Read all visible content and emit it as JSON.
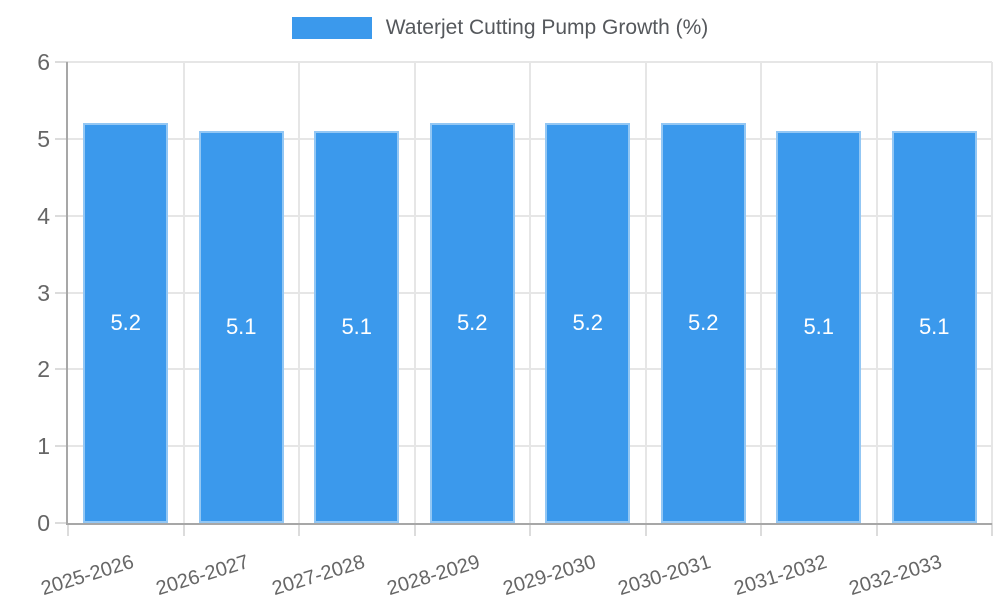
{
  "chart_data": {
    "type": "bar",
    "title": "Waterjet Cutting Pump Growth (%)",
    "categories": [
      "2025-2026",
      "2026-2027",
      "2027-2028",
      "2028-2029",
      "2029-2030",
      "2030-2031",
      "2031-2032",
      "2032-2033"
    ],
    "values": [
      5.2,
      5.1,
      5.1,
      5.2,
      5.2,
      5.2,
      5.1,
      5.1
    ],
    "value_labels": [
      "5.2",
      "5.1",
      "5.1",
      "5.2",
      "5.2",
      "5.2",
      "5.1",
      "5.1"
    ],
    "xlabel": "",
    "ylabel": "",
    "ylim": [
      0,
      6
    ],
    "yticks": [
      0,
      1,
      2,
      3,
      4,
      5,
      6
    ],
    "grid": true,
    "legend_position": "top",
    "x_label_rotation_deg": -17,
    "colors": {
      "bar": "#3b99ec",
      "bar_border": "rgba(255,255,255,0.45)",
      "grid": "#e6e6e6",
      "axis": "#a7a7a7",
      "tick_label": "#666666",
      "legend_label": "#55585c",
      "value_label": "#ffffff",
      "background": "#ffffff"
    }
  }
}
